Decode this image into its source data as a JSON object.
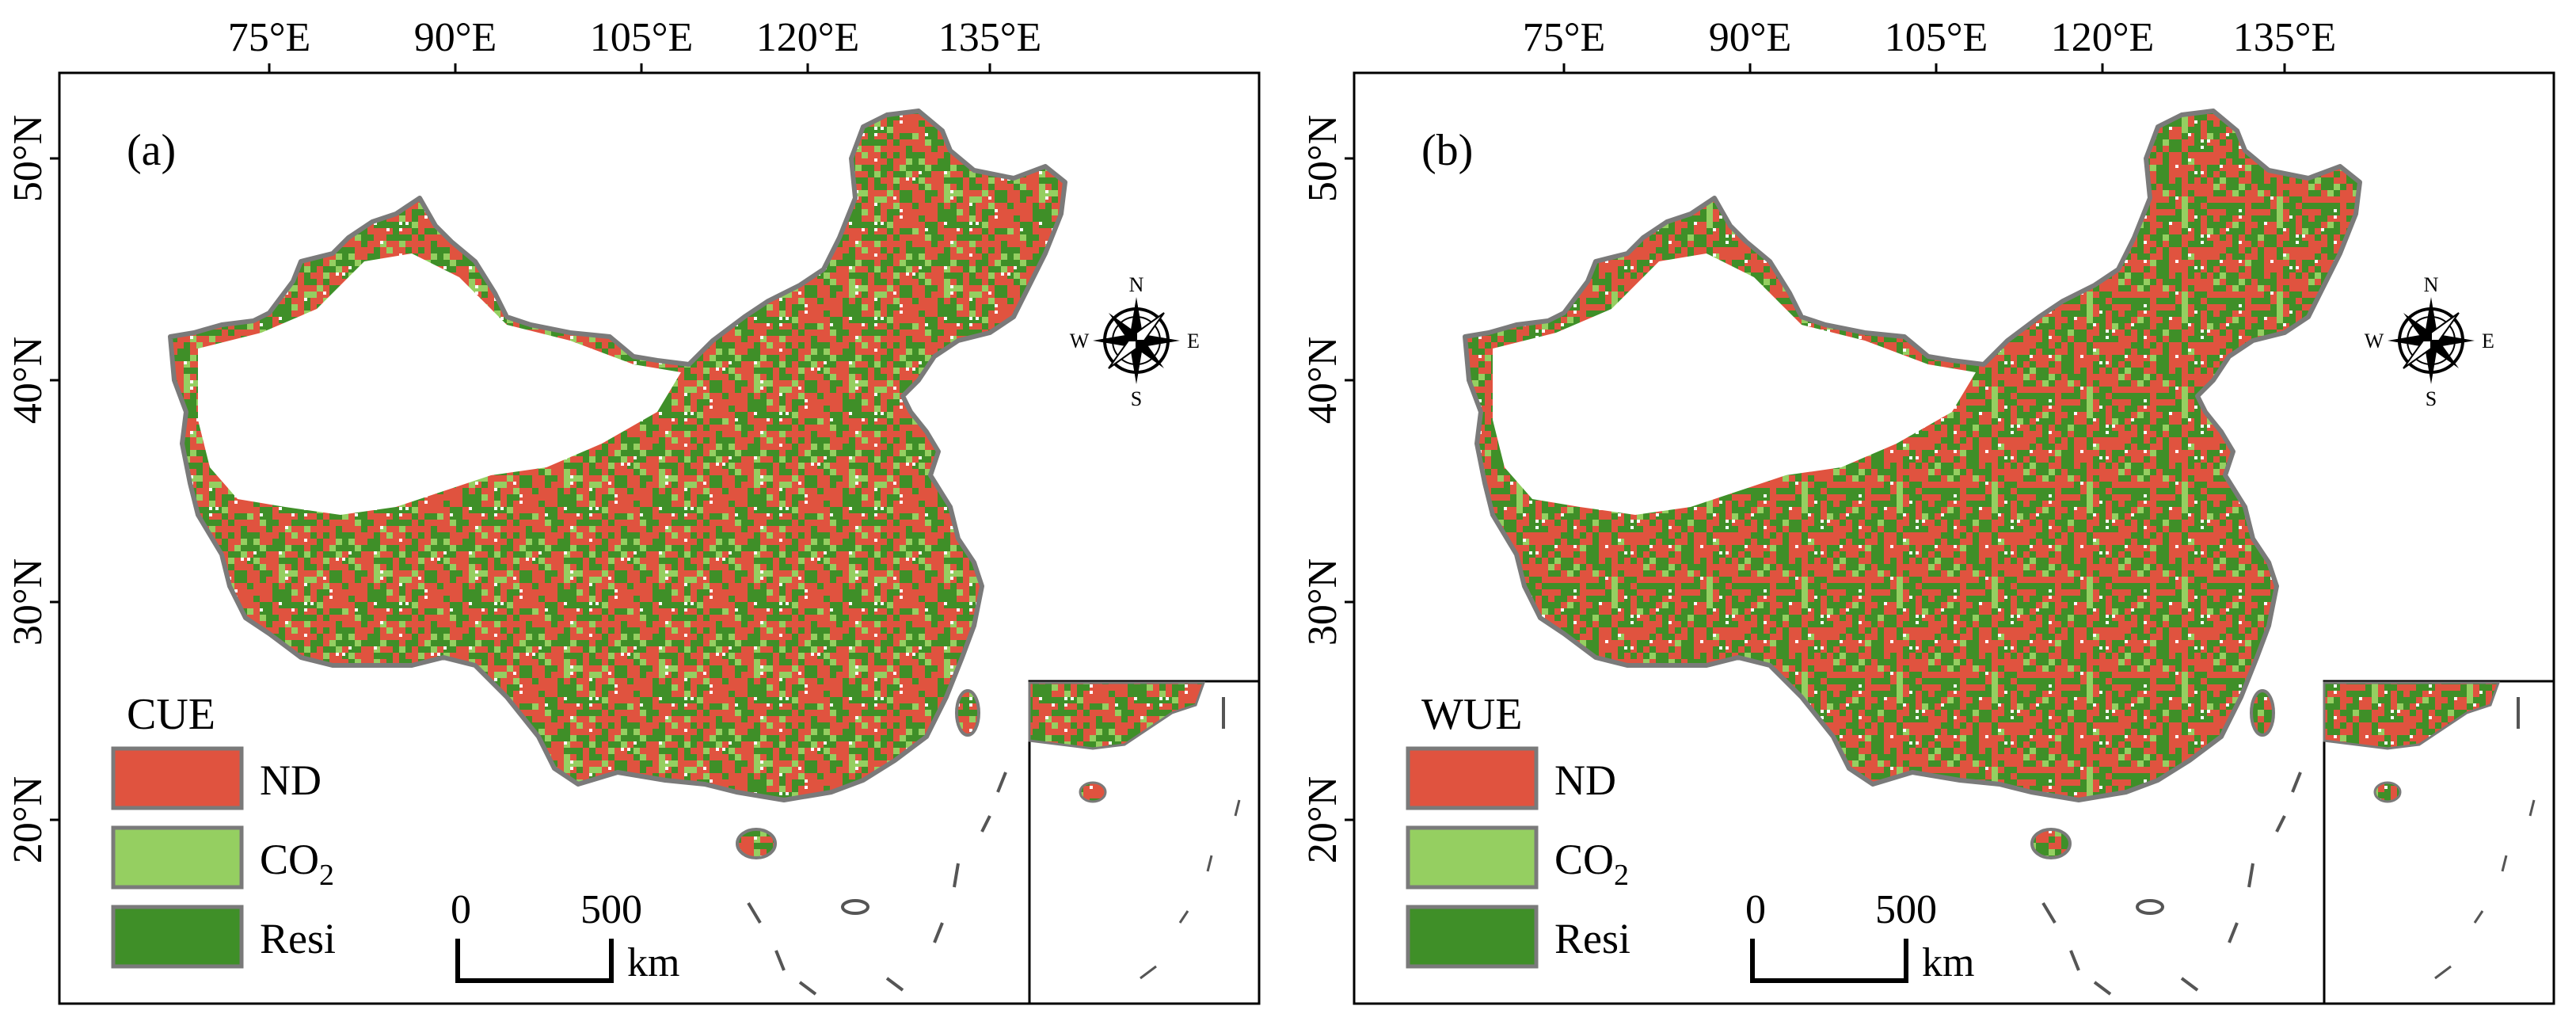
{
  "figure": {
    "panels": [
      {
        "id": "a",
        "label": "(a)",
        "variable": "CUE",
        "top_ticks": [
          "75°E",
          "90°E",
          "105°E",
          "120°E",
          "135°E"
        ],
        "left_ticks": [
          "50°N",
          "40°N",
          "30°N",
          "20°N"
        ],
        "legend": {
          "title": "CUE",
          "items": [
            {
              "key": "ND",
              "text": "ND",
              "color": "#e0533f"
            },
            {
              "key": "CO2",
              "text": "CO",
              "sub": "2",
              "color": "#95cf61"
            },
            {
              "key": "Resi",
              "text": "Resi",
              "color": "#3f8f28"
            }
          ]
        },
        "mix": {
          "ND": 0.46,
          "CO2": 0.12,
          "Resi": 0.42
        },
        "compass": {
          "N": "N",
          "S": "S",
          "E": "E",
          "W": "W"
        },
        "scalebar": {
          "zero": "0",
          "max": "500",
          "unit": "km"
        }
      },
      {
        "id": "b",
        "label": "(b)",
        "variable": "WUE",
        "top_ticks": [
          "75°E",
          "90°E",
          "105°E",
          "120°E",
          "135°E"
        ],
        "left_ticks": [
          "50°N",
          "40°N",
          "30°N",
          "20°N"
        ],
        "legend": {
          "title": "WUE",
          "items": [
            {
              "key": "ND",
              "text": "ND",
              "color": "#e0533f"
            },
            {
              "key": "CO2",
              "text": "CO",
              "sub": "2",
              "color": "#95cf61"
            },
            {
              "key": "Resi",
              "text": "Resi",
              "color": "#3f8f28"
            }
          ]
        },
        "mix": {
          "ND": 0.44,
          "CO2": 0.1,
          "Resi": 0.46
        },
        "compass": {
          "N": "N",
          "S": "S",
          "E": "E",
          "W": "W"
        },
        "scalebar": {
          "zero": "0",
          "max": "500",
          "unit": "km"
        }
      }
    ],
    "colors": {
      "border": "#7a7a7a",
      "frame": "#000000"
    }
  }
}
